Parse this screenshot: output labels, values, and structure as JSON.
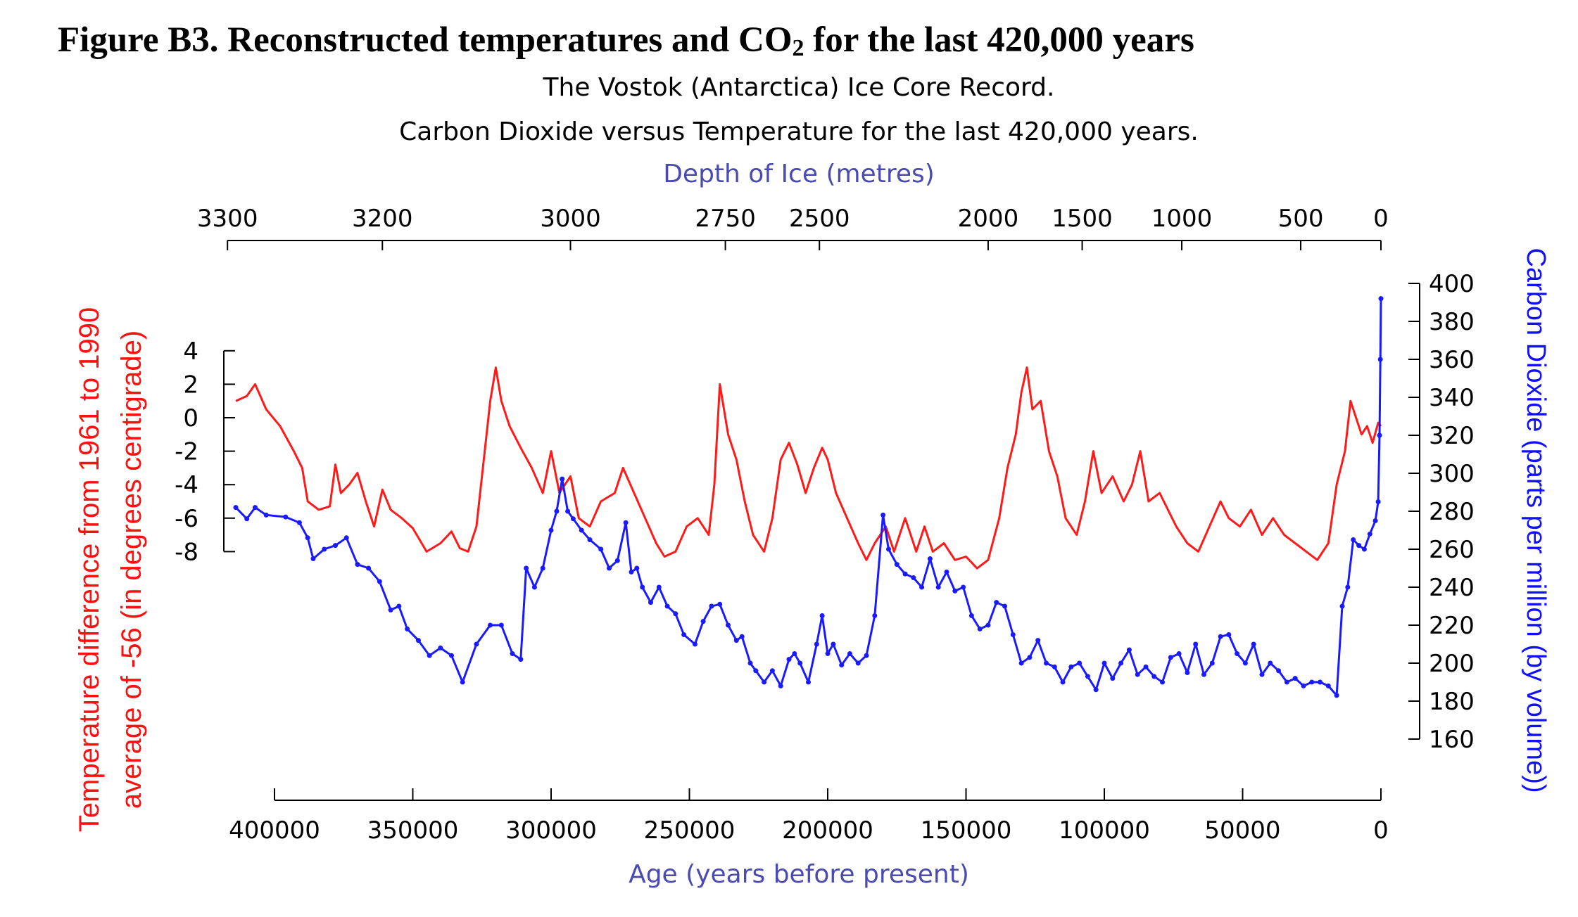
{
  "figure_heading": "Figure B3. Reconstructed temperatures and CO",
  "figure_heading_sub": "2",
  "figure_heading_tail": " for the last 420,000 years",
  "colors": {
    "temperature": "#ff1a1a",
    "co2": "#1a1aff",
    "depth_axis": "#4a4ab0",
    "axis": "#000000"
  },
  "chart_data": {
    "type": "line",
    "title": "The Vostok (Antarctica) Ice Core Record.",
    "subtitle": "Carbon Dioxide versus Temperature for the last 420,000 years.",
    "x_label": "Age (years before present)",
    "x_ticks": [
      400000,
      350000,
      300000,
      250000,
      200000,
      150000,
      100000,
      50000,
      0
    ],
    "x_range": [
      420000,
      0
    ],
    "top_axis_label": "Depth of Ice (metres)",
    "top_axis_ticks": [
      {
        "label": "3300",
        "age": 417000
      },
      {
        "label": "3200",
        "age": 361000
      },
      {
        "label": "3000",
        "age": 293000
      },
      {
        "label": "2750",
        "age": 237000
      },
      {
        "label": "2500",
        "age": 203000
      },
      {
        "label": "2000",
        "age": 142000
      },
      {
        "label": "1500",
        "age": 108000
      },
      {
        "label": "1000",
        "age": 72000
      },
      {
        "label": "500",
        "age": 29000
      },
      {
        "label": "0",
        "age": 0
      }
    ],
    "y_left_label_line1": "Temperature difference from 1961 to 1990",
    "y_left_label_line2": "average of -56 (in degrees centigrade)",
    "y_left_ticks": [
      "4",
      "2",
      "0",
      "-2",
      "-4",
      "-6",
      "-8"
    ],
    "y_left_range": [
      -8,
      4
    ],
    "y_right_label": "Carbon Dioxide (parts per million (by volume))",
    "y_right_ticks": [
      "400",
      "380",
      "360",
      "340",
      "320",
      "300",
      "280",
      "260",
      "240",
      "220",
      "200",
      "180",
      "160"
    ],
    "y_right_range": [
      160,
      400
    ],
    "series": [
      {
        "name": "Temperature",
        "axis": "left",
        "points": [
          [
            414000,
            1.0
          ],
          [
            410000,
            1.3
          ],
          [
            407000,
            2.0
          ],
          [
            403000,
            0.5
          ],
          [
            398000,
            -0.5
          ],
          [
            393000,
            -2.0
          ],
          [
            390000,
            -3.0
          ],
          [
            388000,
            -5.0
          ],
          [
            384000,
            -5.5
          ],
          [
            380000,
            -5.3
          ],
          [
            378000,
            -2.8
          ],
          [
            376000,
            -4.5
          ],
          [
            373000,
            -4.0
          ],
          [
            370000,
            -3.3
          ],
          [
            367000,
            -5.0
          ],
          [
            364000,
            -6.5
          ],
          [
            361000,
            -4.3
          ],
          [
            358000,
            -5.5
          ],
          [
            354000,
            -6.0
          ],
          [
            350000,
            -6.6
          ],
          [
            345000,
            -8.0
          ],
          [
            340000,
            -7.5
          ],
          [
            336000,
            -6.8
          ],
          [
            333000,
            -7.8
          ],
          [
            330000,
            -8.0
          ],
          [
            327000,
            -6.5
          ],
          [
            324000,
            -2.0
          ],
          [
            322000,
            1.0
          ],
          [
            320000,
            3.0
          ],
          [
            318000,
            1.0
          ],
          [
            315000,
            -0.5
          ],
          [
            311000,
            -1.8
          ],
          [
            307000,
            -3.0
          ],
          [
            303000,
            -4.5
          ],
          [
            300000,
            -2.0
          ],
          [
            297000,
            -4.5
          ],
          [
            293000,
            -3.5
          ],
          [
            290000,
            -6.0
          ],
          [
            286000,
            -6.5
          ],
          [
            282000,
            -5.0
          ],
          [
            277000,
            -4.5
          ],
          [
            274000,
            -3.0
          ],
          [
            270000,
            -4.5
          ],
          [
            266000,
            -6.0
          ],
          [
            262000,
            -7.5
          ],
          [
            259000,
            -8.3
          ],
          [
            255000,
            -8.0
          ],
          [
            251000,
            -6.5
          ],
          [
            247000,
            -6.0
          ],
          [
            243000,
            -7.0
          ],
          [
            241000,
            -4.0
          ],
          [
            239000,
            2.0
          ],
          [
            236000,
            -1.0
          ],
          [
            233000,
            -2.5
          ],
          [
            230000,
            -5.0
          ],
          [
            227000,
            -7.0
          ],
          [
            223000,
            -8.0
          ],
          [
            220000,
            -6.0
          ],
          [
            217000,
            -2.5
          ],
          [
            214000,
            -1.5
          ],
          [
            211000,
            -2.8
          ],
          [
            208000,
            -4.5
          ],
          [
            205000,
            -3.0
          ],
          [
            202000,
            -1.8
          ],
          [
            200000,
            -2.5
          ],
          [
            197000,
            -4.5
          ],
          [
            193000,
            -6.0
          ],
          [
            189000,
            -7.5
          ],
          [
            186000,
            -8.5
          ],
          [
            183000,
            -7.5
          ],
          [
            179000,
            -6.5
          ],
          [
            176000,
            -8.0
          ],
          [
            172000,
            -6.0
          ],
          [
            168000,
            -8.0
          ],
          [
            165000,
            -6.5
          ],
          [
            162000,
            -8.0
          ],
          [
            158000,
            -7.5
          ],
          [
            154000,
            -8.5
          ],
          [
            150000,
            -8.3
          ],
          [
            146000,
            -9.0
          ],
          [
            142000,
            -8.5
          ],
          [
            138000,
            -6.0
          ],
          [
            135000,
            -3.0
          ],
          [
            132000,
            -1.0
          ],
          [
            130000,
            1.5
          ],
          [
            128000,
            3.0
          ],
          [
            126000,
            0.5
          ],
          [
            123000,
            1.0
          ],
          [
            120000,
            -2.0
          ],
          [
            117000,
            -3.5
          ],
          [
            114000,
            -6.0
          ],
          [
            110000,
            -7.0
          ],
          [
            107000,
            -5.0
          ],
          [
            104000,
            -2.0
          ],
          [
            101000,
            -4.5
          ],
          [
            97000,
            -3.5
          ],
          [
            93000,
            -5.0
          ],
          [
            90000,
            -4.0
          ],
          [
            87000,
            -2.0
          ],
          [
            84000,
            -5.0
          ],
          [
            80000,
            -4.5
          ],
          [
            77000,
            -5.5
          ],
          [
            74000,
            -6.5
          ],
          [
            70000,
            -7.5
          ],
          [
            66000,
            -8.0
          ],
          [
            62000,
            -6.5
          ],
          [
            58000,
            -5.0
          ],
          [
            55000,
            -6.0
          ],
          [
            51000,
            -6.5
          ],
          [
            47000,
            -5.5
          ],
          [
            43000,
            -7.0
          ],
          [
            39000,
            -6.0
          ],
          [
            35000,
            -7.0
          ],
          [
            31000,
            -7.5
          ],
          [
            27000,
            -8.0
          ],
          [
            23000,
            -8.5
          ],
          [
            19000,
            -7.5
          ],
          [
            16000,
            -4.0
          ],
          [
            13000,
            -2.0
          ],
          [
            11000,
            1.0
          ],
          [
            9000,
            0.0
          ],
          [
            7000,
            -1.0
          ],
          [
            5000,
            -0.5
          ],
          [
            3000,
            -1.5
          ],
          [
            1000,
            -0.3
          ],
          [
            0,
            -0.5
          ]
        ]
      },
      {
        "name": "Carbon Dioxide",
        "axis": "right",
        "points": [
          [
            414000,
            282
          ],
          [
            410000,
            276
          ],
          [
            407000,
            282
          ],
          [
            403000,
            278
          ],
          [
            396000,
            277
          ],
          [
            391000,
            274
          ],
          [
            388000,
            266
          ],
          [
            386000,
            255
          ],
          [
            382000,
            260
          ],
          [
            378000,
            262
          ],
          [
            374000,
            266
          ],
          [
            370000,
            252
          ],
          [
            366000,
            250
          ],
          [
            362000,
            243
          ],
          [
            358000,
            228
          ],
          [
            355000,
            230
          ],
          [
            352000,
            218
          ],
          [
            348000,
            212
          ],
          [
            344000,
            204
          ],
          [
            340000,
            208
          ],
          [
            336000,
            204
          ],
          [
            332000,
            190
          ],
          [
            327000,
            210
          ],
          [
            322000,
            220
          ],
          [
            318000,
            220
          ],
          [
            314000,
            205
          ],
          [
            311000,
            202
          ],
          [
            309000,
            250
          ],
          [
            306000,
            240
          ],
          [
            303000,
            250
          ],
          [
            300000,
            270
          ],
          [
            298000,
            280
          ],
          [
            296000,
            297
          ],
          [
            294000,
            280
          ],
          [
            292000,
            276
          ],
          [
            289000,
            270
          ],
          [
            286000,
            265
          ],
          [
            282000,
            260
          ],
          [
            279000,
            250
          ],
          [
            276000,
            254
          ],
          [
            273000,
            274
          ],
          [
            271000,
            248
          ],
          [
            269000,
            250
          ],
          [
            267000,
            240
          ],
          [
            264000,
            232
          ],
          [
            261000,
            240
          ],
          [
            258000,
            230
          ],
          [
            255000,
            226
          ],
          [
            252000,
            215
          ],
          [
            248000,
            210
          ],
          [
            245000,
            222
          ],
          [
            242000,
            230
          ],
          [
            239000,
            231
          ],
          [
            236000,
            220
          ],
          [
            233000,
            212
          ],
          [
            231000,
            214
          ],
          [
            228000,
            200
          ],
          [
            226000,
            196
          ],
          [
            223000,
            190
          ],
          [
            220000,
            196
          ],
          [
            217000,
            188
          ],
          [
            214000,
            202
          ],
          [
            212000,
            205
          ],
          [
            210000,
            200
          ],
          [
            207000,
            190
          ],
          [
            204000,
            210
          ],
          [
            202000,
            225
          ],
          [
            200000,
            205
          ],
          [
            198000,
            210
          ],
          [
            195000,
            199
          ],
          [
            192000,
            205
          ],
          [
            189000,
            200
          ],
          [
            186000,
            204
          ],
          [
            183000,
            225
          ],
          [
            180000,
            278
          ],
          [
            178000,
            260
          ],
          [
            175000,
            252
          ],
          [
            172000,
            247
          ],
          [
            169000,
            245
          ],
          [
            166000,
            240
          ],
          [
            163000,
            255
          ],
          [
            160000,
            240
          ],
          [
            157000,
            248
          ],
          [
            154000,
            238
          ],
          [
            151000,
            240
          ],
          [
            148000,
            225
          ],
          [
            145000,
            218
          ],
          [
            142000,
            220
          ],
          [
            139000,
            232
          ],
          [
            136000,
            230
          ],
          [
            133000,
            215
          ],
          [
            130000,
            200
          ],
          [
            127000,
            203
          ],
          [
            124000,
            212
          ],
          [
            121000,
            200
          ],
          [
            118000,
            198
          ],
          [
            115000,
            190
          ],
          [
            112000,
            198
          ],
          [
            109000,
            200
          ],
          [
            106000,
            193
          ],
          [
            103000,
            186
          ],
          [
            100000,
            200
          ],
          [
            97000,
            192
          ],
          [
            94000,
            200
          ],
          [
            91000,
            207
          ],
          [
            88000,
            194
          ],
          [
            85000,
            198
          ],
          [
            82000,
            193
          ],
          [
            79000,
            190
          ],
          [
            76000,
            203
          ],
          [
            73000,
            205
          ],
          [
            70000,
            195
          ],
          [
            67000,
            210
          ],
          [
            64000,
            194
          ],
          [
            61000,
            200
          ],
          [
            58000,
            214
          ],
          [
            55000,
            215
          ],
          [
            52000,
            205
          ],
          [
            49000,
            200
          ],
          [
            46000,
            210
          ],
          [
            43000,
            194
          ],
          [
            40000,
            200
          ],
          [
            37000,
            196
          ],
          [
            34000,
            190
          ],
          [
            31000,
            192
          ],
          [
            28000,
            188
          ],
          [
            25000,
            190
          ],
          [
            22000,
            190
          ],
          [
            19000,
            188
          ],
          [
            16000,
            183
          ],
          [
            14000,
            230
          ],
          [
            12000,
            240
          ],
          [
            10000,
            265
          ],
          [
            8000,
            262
          ],
          [
            6000,
            260
          ],
          [
            4000,
            268
          ],
          [
            2000,
            275
          ],
          [
            1000,
            285
          ],
          [
            500,
            320
          ],
          [
            200,
            360
          ],
          [
            0,
            392
          ]
        ]
      }
    ]
  }
}
